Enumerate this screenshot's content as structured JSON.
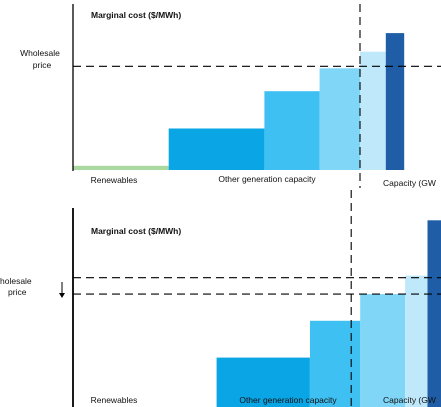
{
  "colors": {
    "renewables": "#a9d8a0",
    "bar_1": "#0aa5e4",
    "bar_2": "#3fc0f2",
    "bar_3": "#80d6f7",
    "bar_4": "#bfe9fb",
    "bar_5": "#1f5ea6",
    "axis": "#000000",
    "dash": "#000000"
  },
  "chart_data": [
    {
      "type": "bar",
      "title": "Marginal cost ($/MWh)",
      "ylabel": "Marginal cost ($/MWh)",
      "xlabel": "Capacity (GW",
      "category_labels": [
        "Renewables",
        "Other generation capacity"
      ],
      "price_label_lines": [
        "Wholesale",
        "price"
      ],
      "wholesale_price": 50,
      "demand_capacity": 39,
      "ylim": [
        0,
        80
      ],
      "xlim": [
        0,
        50
      ],
      "bars": [
        {
          "x_start": 0,
          "x_end": 13,
          "value": 2,
          "color": "renewables"
        },
        {
          "x_start": 13,
          "x_end": 26,
          "value": 20,
          "color": "bar_1"
        },
        {
          "x_start": 26,
          "x_end": 33.5,
          "value": 38,
          "color": "bar_2"
        },
        {
          "x_start": 33.5,
          "x_end": 39,
          "value": 49,
          "color": "bar_3"
        },
        {
          "x_start": 39,
          "x_end": 42.5,
          "value": 57,
          "color": "bar_4"
        },
        {
          "x_start": 42.5,
          "x_end": 45,
          "value": 66,
          "color": "bar_5"
        }
      ]
    },
    {
      "type": "bar",
      "title": "Marginal cost ($/MWh)",
      "ylabel": "Marginal cost ($/MWh)",
      "xlabel": "Capacity (GW",
      "category_labels": [
        "Renewables",
        "Other generation capacity"
      ],
      "price_label_lines": [
        "holesale",
        "price"
      ],
      "price_change_arrow": "down",
      "wholesale_price_before": 66,
      "wholesale_price": 58,
      "demand_capacity": 31,
      "ylim": [
        0,
        100
      ],
      "xlim": [
        0,
        41
      ],
      "bars": [
        {
          "x_start": 0,
          "x_end": 16,
          "value": 2,
          "color": "renewables"
        },
        {
          "x_start": 16,
          "x_end": 26.4,
          "value": 27,
          "color": "bar_1"
        },
        {
          "x_start": 26.4,
          "x_end": 32,
          "value": 45,
          "color": "bar_2"
        },
        {
          "x_start": 32,
          "x_end": 37,
          "value": 58,
          "color": "bar_3"
        },
        {
          "x_start": 37,
          "x_end": 39.5,
          "value": 67,
          "color": "bar_4"
        },
        {
          "x_start": 39.5,
          "x_end": 41,
          "value": 94,
          "color": "bar_5"
        }
      ]
    }
  ]
}
